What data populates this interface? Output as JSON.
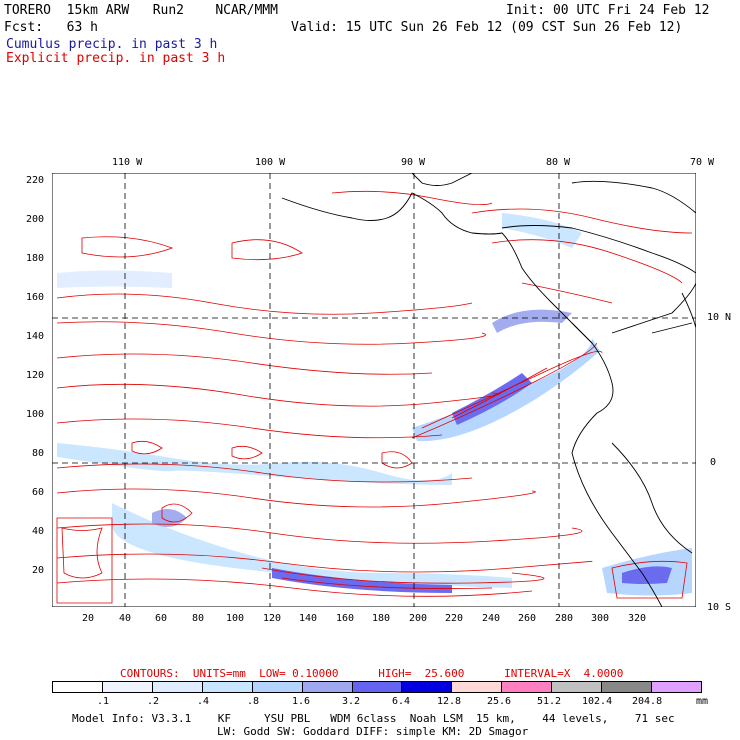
{
  "header": {
    "line1_left": "TORERO  15km ARW   Run2    NCAR/MMM",
    "line1_right": "Init: 00 UTC Fri 24 Feb 12",
    "line2_left": "Fcst:   63 h",
    "line2_right": "Valid: 15 UTC Sun 26 Feb 12 (09 CST Sun 26 Feb 12)",
    "cumulus_label": "Cumulus precip. in past 3 h",
    "explicit_label": "Explicit precip. in past 3 h"
  },
  "map": {
    "lon_labels": [
      "110 W",
      "100 W",
      "90 W",
      "80 W",
      "70 W"
    ],
    "lat_labels": [
      "10 N",
      "0",
      "10 S"
    ],
    "y_ticks": [
      "220",
      "200",
      "180",
      "160",
      "140",
      "120",
      "100",
      "80",
      "60",
      "40",
      "20"
    ],
    "x_ticks": [
      "20",
      "40",
      "60",
      "80",
      "100",
      "120",
      "140",
      "160",
      "180",
      "200",
      "220",
      "240",
      "260",
      "280",
      "300",
      "320"
    ],
    "x_range": [
      0,
      333
    ],
    "y_range": [
      3,
      225
    ],
    "colors": {
      "contour": "#e00000",
      "coast": "#000000",
      "grid": "#000000"
    }
  },
  "contours_info": {
    "text": "CONTOURS:  UNITS=mm  LOW= 0.10000      HIGH=  25.600      INTERVAL=X  4.0000"
  },
  "legend": {
    "labels": [
      ".1",
      ".2",
      ".4",
      ".8",
      "1.6",
      "3.2",
      "6.4",
      "12.8",
      "25.6",
      "51.2",
      "102.4",
      "204.8"
    ],
    "unit": "mm",
    "colors": [
      "#ffffff",
      "#f0f4ff",
      "#e0ecff",
      "#c8e6ff",
      "#b4d4ff",
      "#a0a8f0",
      "#6464f0",
      "#0000e0",
      "#ffd8d8",
      "#ff80c0",
      "#c0c0c0",
      "#888888",
      "#e0a0ff"
    ]
  },
  "footer": {
    "line1": "Model Info: V3.3.1    KF     YSU PBL   WDM 6class  Noah LSM  15 km,    44 levels,    71 sec",
    "line2": "LW: Godd SW: Goddard DIFF: simple KM: 2D Smagor"
  }
}
